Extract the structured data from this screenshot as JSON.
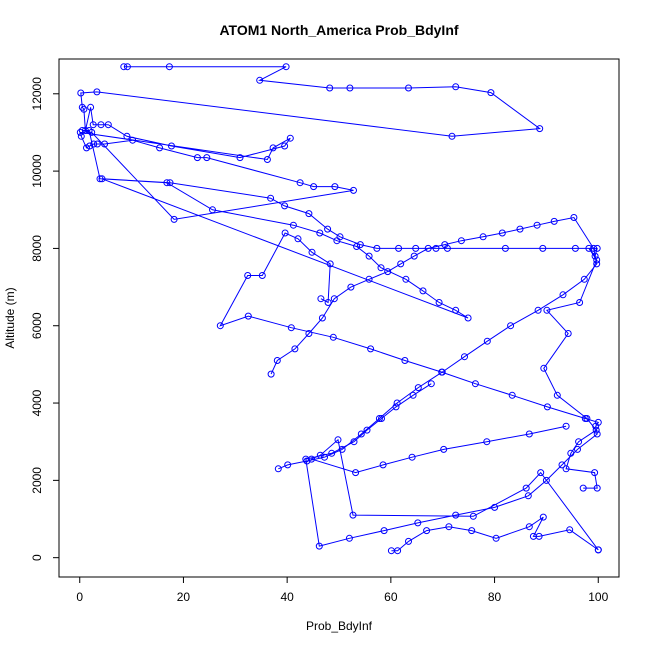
{
  "chart_data": {
    "type": "line",
    "title": "ATOM1 North_America Prob_BdyInf",
    "xlabel": "Prob_BdyInf",
    "ylabel": "Altitude (m)",
    "xlim": [
      -4,
      104
    ],
    "ylim": [
      -500,
      12900
    ],
    "xticks": [
      0,
      20,
      40,
      60,
      80,
      100
    ],
    "yticks": [
      0,
      2000,
      4000,
      6000,
      8000,
      10000,
      12000
    ],
    "grid": false,
    "legend": "none",
    "marker": "open-circle",
    "series_color": "#0000ff",
    "series": [
      {
        "x": [
          8.5,
          9.2,
          17.3,
          39.8,
          34.7,
          48.2,
          52.1,
          63.4,
          72.5,
          79.3,
          88.7,
          71.8,
          3.3,
          0.2,
          0.5,
          0.8,
          1.1,
          2.1,
          2.6,
          4.1,
          5.5,
          9.1,
          17.7,
          30.9,
          39.5,
          40.6,
          37.3,
          36.2,
          0.1,
          0.3,
          1.3,
          1.9,
          2.7,
          3.4,
          4.8,
          10.2,
          15.4,
          22.7,
          24.5,
          42.5,
          45.1,
          49.2,
          52.8,
          18.2,
          2.3,
          0.5,
          1.8,
          3.9,
          16.8,
          25.6,
          41.2,
          46.3,
          49.6,
          53.4,
          55.8,
          58.1,
          62.9,
          66.2,
          69.3,
          72.5,
          74.9,
          4.3,
          17.4,
          36.8,
          39.5,
          44.2,
          47.8,
          50.2,
          54.1,
          57.3,
          61.5,
          64.8,
          68.7,
          70.9,
          82.1,
          89.3,
          95.6,
          99.8,
          99.4,
          98.2,
          99.7,
          96.4,
          90.1,
          94.2,
          89.5,
          92.1,
          97.8,
          99.6,
          96.2,
          94.7,
          93.8,
          99.3,
          99.8,
          97.1
        ],
        "y": [
          12700,
          12700,
          12700,
          12700,
          12350,
          12150,
          12150,
          12150,
          12180,
          12030,
          11100,
          10900,
          12050,
          12020,
          11650,
          11600,
          11050,
          11650,
          11200,
          11200,
          11200,
          10900,
          10650,
          10350,
          10650,
          10850,
          10600,
          10300,
          11000,
          10900,
          10600,
          10650,
          10700,
          10700,
          10700,
          10800,
          10600,
          10350,
          10350,
          9700,
          9600,
          9600,
          9500,
          8750,
          11000,
          11050,
          11050,
          9800,
          9700,
          9000,
          8600,
          8400,
          8200,
          8050,
          7800,
          7500,
          7200,
          6900,
          6600,
          6400,
          6200,
          9800,
          9700,
          9300,
          9100,
          8900,
          8500,
          8300,
          8100,
          8000,
          8000,
          8000,
          8000,
          8000,
          8000,
          8000,
          8000,
          8000,
          7800,
          8000,
          7700,
          6600,
          6400,
          5800,
          4900,
          4200,
          3600,
          3300,
          3000,
          2700,
          2300,
          2200,
          1800,
          1800
        ]
      },
      {
        "x": [
          36.9,
          38.1,
          41.5,
          44.2,
          46.8,
          49.1,
          52.3,
          55.8,
          59.4,
          61.9,
          64.5,
          67.2,
          70.4,
          73.6,
          77.8,
          81.5,
          84.9,
          88.2,
          91.5,
          95.3,
          99.1,
          99.7,
          97.3,
          93.2,
          88.4,
          83.1,
          78.6,
          74.2,
          69.9,
          65.3,
          61.2,
          57.8,
          54.3,
          50.6,
          47.2,
          43.8,
          40.1,
          38.3
        ],
        "y": [
          4750,
          5100,
          5400,
          5800,
          6200,
          6700,
          7000,
          7200,
          7400,
          7600,
          7800,
          8000,
          8100,
          8200,
          8300,
          8400,
          8500,
          8600,
          8700,
          8800,
          8000,
          7600,
          7200,
          6800,
          6400,
          6000,
          5600,
          5200,
          4800,
          4400,
          4000,
          3600,
          3200,
          2800,
          2600,
          2500,
          2400,
          2300
        ]
      },
      {
        "x": [
          46.5,
          47.9,
          48.3,
          44.8,
          42.1,
          39.6,
          35.2,
          32.4,
          27.1,
          32.5,
          40.8,
          48.9,
          56.1,
          62.7,
          69.8,
          76.3,
          83.4,
          90.2,
          97.5,
          100.0,
          99.5,
          99.8,
          96.0,
          93.0,
          90.0,
          86.5,
          80.0,
          72.5,
          65.2,
          58.7,
          52.0,
          46.2,
          43.6,
          48.6,
          52.9,
          55.4,
          58.2,
          61.0,
          64.3,
          67.8
        ],
        "y": [
          6700,
          6600,
          7600,
          7900,
          8250,
          8400,
          7300,
          7300,
          6000,
          6250,
          5950,
          5700,
          5400,
          5100,
          4800,
          4500,
          4200,
          3900,
          3600,
          3500,
          3400,
          3200,
          2800,
          2400,
          2000,
          1600,
          1300,
          1100,
          900,
          700,
          500,
          300,
          2550,
          2700,
          3000,
          3300,
          3600,
          3900,
          4200,
          4500
        ],
        "y_note": ""
      },
      {
        "x": [
          60.1,
          61.3,
          63.4,
          66.9,
          71.2,
          75.6,
          80.3,
          86.7,
          89.4,
          87.5,
          88.6,
          94.5,
          100.0,
          100.0,
          88.9,
          86.1,
          75.9,
          52.7,
          49.8,
          46.4,
          44.7,
          53.2,
          58.5,
          64.1,
          70.2,
          78.5,
          86.7,
          93.8
        ],
        "y": [
          180,
          180,
          420,
          700,
          800,
          700,
          500,
          800,
          1050,
          550,
          550,
          720,
          200,
          200,
          2200,
          1800,
          1070,
          1100,
          3050,
          2650,
          2550,
          2200,
          2400,
          2600,
          2800,
          3000,
          3200,
          3400
        ]
      }
    ]
  }
}
